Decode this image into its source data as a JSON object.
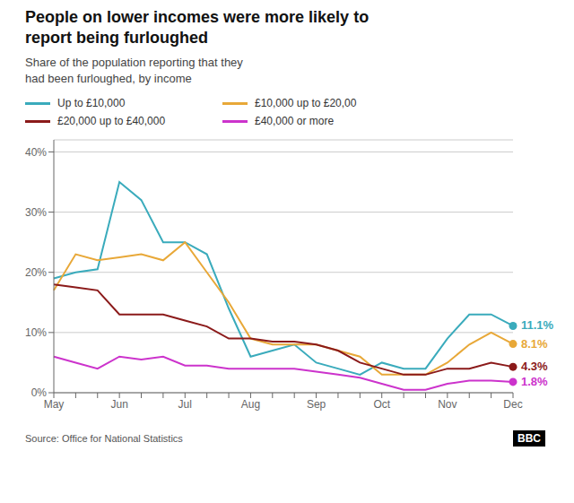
{
  "chart_data": {
    "type": "line",
    "title": "People on lower incomes were more likely to\nreport being furloughed",
    "subtitle": "Share of the population reporting that they\nhad been furloughed, by income",
    "categories": [
      "May",
      null,
      null,
      "Jun",
      null,
      null,
      "Jul",
      null,
      null,
      "Aug",
      null,
      null,
      "Sep",
      null,
      null,
      "Oct",
      null,
      null,
      "Nov",
      null,
      null,
      "Dec"
    ],
    "series": [
      {
        "name": "Up to £10,000",
        "color": "#3AABBC",
        "values": [
          19,
          20,
          20.5,
          35,
          32,
          25,
          25,
          23,
          14,
          6,
          7,
          8,
          5,
          4,
          3,
          5,
          4,
          4,
          9,
          13,
          13,
          11.1
        ],
        "value_labels": [
          null,
          null,
          null,
          null,
          null,
          null,
          null,
          null,
          null,
          null,
          null,
          null,
          null,
          null,
          null,
          null,
          null,
          null,
          null,
          null,
          null,
          "11.1%"
        ]
      },
      {
        "name": "£10,000 up to £20,00",
        "color": "#E8A838",
        "values": [
          17,
          23,
          22,
          22.5,
          23,
          22,
          25,
          20,
          15,
          9,
          8,
          8,
          8,
          7,
          6,
          3,
          3,
          3,
          5,
          8,
          10,
          8.1
        ],
        "value_labels": [
          null,
          null,
          null,
          null,
          null,
          null,
          null,
          null,
          null,
          null,
          null,
          null,
          null,
          null,
          null,
          null,
          null,
          null,
          null,
          null,
          null,
          "8.1%"
        ]
      },
      {
        "name": "£20,000 up to £40,000",
        "color": "#8B1A1A",
        "values": [
          18,
          17.5,
          17,
          13,
          13,
          13,
          12,
          11,
          9,
          9,
          8.5,
          8.5,
          8,
          7,
          5,
          4,
          3,
          3,
          4,
          4,
          5,
          4.3
        ],
        "value_labels": [
          null,
          null,
          null,
          null,
          null,
          null,
          null,
          null,
          null,
          null,
          null,
          null,
          null,
          null,
          null,
          null,
          null,
          null,
          null,
          null,
          null,
          "4.3%"
        ]
      },
      {
        "name": "£40,000 or more",
        "color": "#CC33CC",
        "values": [
          6,
          5,
          4,
          6,
          5.5,
          6,
          4.5,
          4.5,
          4,
          4,
          4,
          4,
          3.5,
          3,
          2.5,
          1.5,
          0.5,
          0.5,
          1.5,
          2,
          2,
          1.8
        ],
        "value_labels": [
          null,
          null,
          null,
          null,
          null,
          null,
          null,
          null,
          null,
          null,
          null,
          null,
          null,
          null,
          null,
          null,
          null,
          null,
          null,
          null,
          null,
          "1.8%"
        ]
      }
    ],
    "ylim": [
      0,
      42
    ],
    "yticks": [
      {
        "value": 0,
        "label": "0%"
      },
      {
        "value": 10,
        "label": "10%"
      },
      {
        "value": 20,
        "label": "20%"
      },
      {
        "value": 30,
        "label": "30%"
      },
      {
        "value": 40,
        "label": "40%"
      }
    ],
    "grid": true,
    "legend": "upper left",
    "annotations": [
      "Source: Office for National Statistics",
      "BBC"
    ]
  }
}
